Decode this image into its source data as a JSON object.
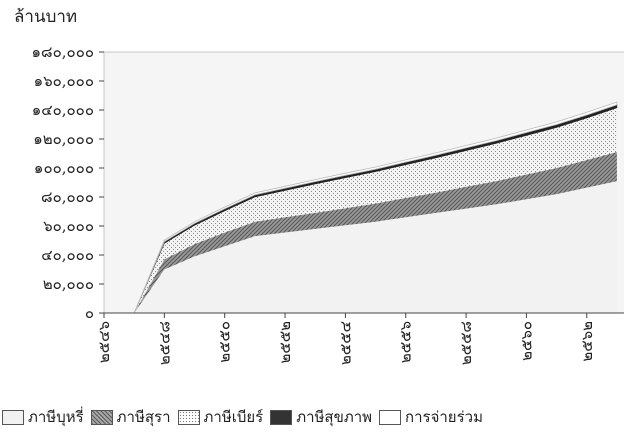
{
  "chart_data": {
    "type": "area",
    "stacked": true,
    "ylabel": "ล้านบาท",
    "ylim": [
      0,
      180000
    ],
    "yticks": [
      "๐",
      "๒๐,๐๐๐",
      "๔๐,๐๐๐",
      "๖๐,๐๐๐",
      "๘๐,๐๐๐",
      "๑๐๐,๐๐๐",
      "๑๒๐,๐๐๐",
      "๑๔๐,๐๐๐",
      "๑๖๐,๐๐๐",
      "๑๘๐,๐๐๐"
    ],
    "ytick_values": [
      0,
      20000,
      40000,
      60000,
      80000,
      100000,
      120000,
      140000,
      160000,
      180000
    ],
    "x": [
      2546,
      2547,
      2548,
      2549,
      2550,
      2551,
      2552,
      2553,
      2554,
      2555,
      2556,
      2557,
      2558,
      2559,
      2560,
      2561,
      2562,
      2563
    ],
    "xticks": [
      "๒๕๔๖",
      "๒๕๔๘",
      "๒๕๕๐",
      "๒๕๕๒",
      "๒๕๕๔",
      "๒๕๕๖",
      "๒๕๕๘",
      "๒๕๖๐",
      "๒๕๖๒"
    ],
    "xtick_values": [
      2546,
      2548,
      2550,
      2552,
      2554,
      2556,
      2558,
      2560,
      2562
    ],
    "grid": false,
    "legend_position": "bottom",
    "series": [
      {
        "name": "ภาษีบุหรี่",
        "values": [
          0,
          0,
          30000,
          39000,
          46000,
          53000,
          55500,
          58000,
          60500,
          63000,
          66000,
          69000,
          72000,
          75000,
          78500,
          82000,
          86500,
          91000
        ],
        "color": "#f2f2f2",
        "pattern": "plain"
      },
      {
        "name": "ภาษีสุรา",
        "values": [
          0,
          0,
          7000,
          8500,
          9500,
          10000,
          10500,
          11000,
          11800,
          12500,
          13300,
          14000,
          15000,
          16000,
          17000,
          18000,
          19000,
          20000
        ],
        "color": "#7a7a7a",
        "pattern": "diagonal"
      },
      {
        "name": "ภาษีเบียร์",
        "values": [
          0,
          0,
          11000,
          13000,
          15000,
          17000,
          18500,
          20000,
          21000,
          22000,
          23000,
          24000,
          25000,
          26000,
          27000,
          28000,
          29000,
          30500
        ],
        "color": "#d6d6d6",
        "pattern": "dots"
      },
      {
        "name": "ภาษีสุขภาพ",
        "values": [
          0,
          0,
          1200,
          1300,
          1400,
          1500,
          1550,
          1600,
          1650,
          1700,
          1750,
          1800,
          1850,
          1900,
          1950,
          2000,
          2050,
          2100
        ],
        "color": "#222222",
        "pattern": "solid"
      },
      {
        "name": "การจ่ายร่วม",
        "values": [
          0,
          0,
          1000,
          1100,
          1200,
          1300,
          1350,
          1400,
          1450,
          1500,
          1550,
          1600,
          1650,
          1700,
          1750,
          1800,
          1850,
          1900
        ],
        "color": "#ffffff",
        "pattern": "outline"
      }
    ]
  }
}
